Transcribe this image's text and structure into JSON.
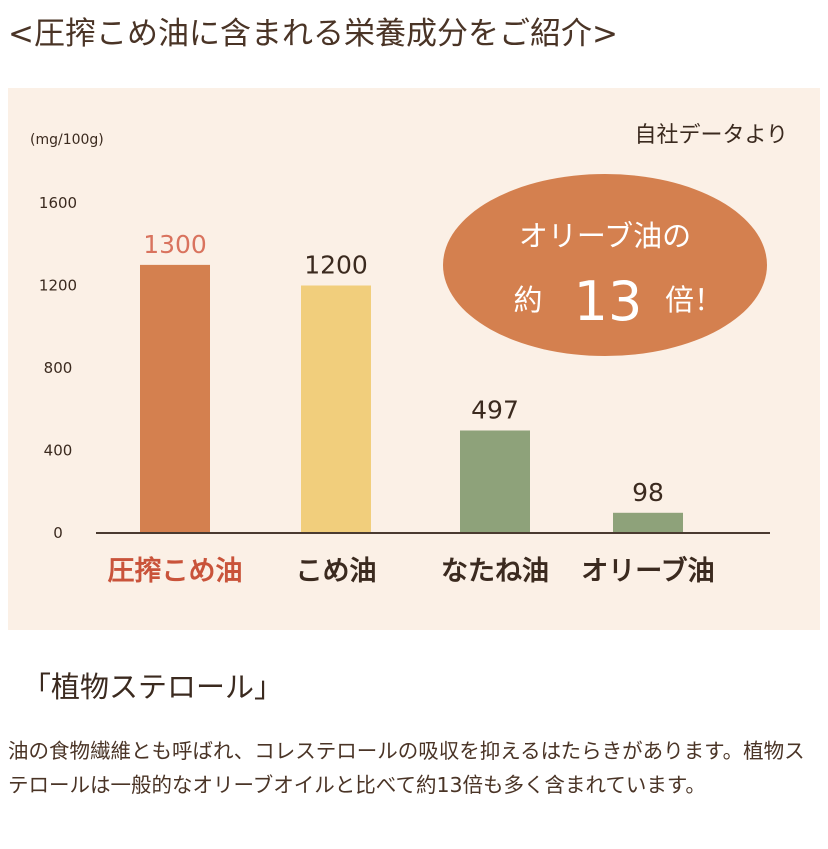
{
  "page_title": "<圧搾こめ油に含まれる栄養成分をご紹介>",
  "chart_data": {
    "type": "bar",
    "unit_label": "(mg/100g)",
    "source_note": "自社データより",
    "categories": [
      "圧搾こめ油",
      "こめ油",
      "なたね油",
      "オリーブ油"
    ],
    "values": [
      1300,
      1200,
      497,
      98
    ],
    "value_labels": [
      "1300",
      "1200",
      "497",
      "98"
    ],
    "yticks": [
      0,
      400,
      800,
      1200,
      1600
    ],
    "ytick_labels": [
      "0",
      "400",
      "800",
      "1200",
      "1600"
    ],
    "ylim": [
      0,
      1600
    ],
    "grid": false,
    "bar_colors": [
      "#d4804f",
      "#f1ce7c",
      "#8ea27a",
      "#8ea27a"
    ],
    "highlight_color": "#c9533a",
    "label_color": "#3b2a1f",
    "highlight_value_color": "#d9735e",
    "callout": {
      "line1": "オリーブ油の",
      "prefix": "約",
      "number": "13",
      "suffix": "倍！",
      "fill": "#d4804f",
      "text_color": "#ffffff"
    }
  },
  "section": {
    "heading": "「植物ステロール」",
    "body": "油の食物繊維とも呼ばれ、コレステロールの吸収を抑えるはたらきがあります。植物ステロールは一般的なオリーブオイルと比べて約13倍も多く含まれています。"
  }
}
